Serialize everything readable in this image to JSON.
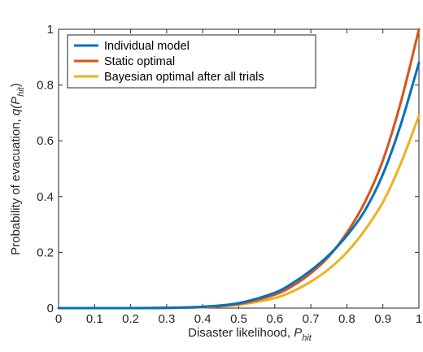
{
  "chart_data": {
    "type": "line",
    "title": "",
    "xlabel": {
      "main": "Disaster likelihood, ",
      "var": "P",
      "sub": "hit"
    },
    "ylabel": {
      "main": "Probability of evacuation, ",
      "var": "q(P",
      "sub": "hit",
      "close": ")"
    },
    "xlim": [
      0,
      1
    ],
    "ylim": [
      0,
      1
    ],
    "x_ticks": [
      "0",
      "0.1",
      "0.2",
      "0.3",
      "0.4",
      "0.5",
      "0.6",
      "0.7",
      "0.8",
      "0.9",
      "1"
    ],
    "y_ticks": [
      "0",
      "0.2",
      "0.4",
      "0.6",
      "0.8",
      "1"
    ],
    "legend_position": "top-left",
    "grid": false,
    "x": [
      0,
      0.1,
      0.2,
      0.3,
      0.4,
      0.5,
      0.6,
      0.65,
      0.7,
      0.75,
      0.8,
      0.85,
      0.9,
      0.95,
      1.0
    ],
    "series": [
      {
        "name": "Individual model",
        "color": "#0072BD",
        "values": [
          0,
          0,
          0,
          0.001,
          0.005,
          0.018,
          0.055,
          0.09,
          0.135,
          0.19,
          0.26,
          0.35,
          0.48,
          0.66,
          0.88
        ]
      },
      {
        "name": "Static optimal",
        "color": "#D95319",
        "values": [
          0,
          0,
          0,
          0.0008,
          0.004,
          0.015,
          0.048,
          0.08,
          0.125,
          0.185,
          0.27,
          0.38,
          0.53,
          0.74,
          1.0
        ]
      },
      {
        "name": "Bayesian optimal after all trials",
        "color": "#EDB120",
        "values": [
          0,
          0,
          0,
          0.0005,
          0.003,
          0.012,
          0.036,
          0.06,
          0.095,
          0.14,
          0.2,
          0.28,
          0.38,
          0.52,
          0.69
        ]
      }
    ]
  }
}
